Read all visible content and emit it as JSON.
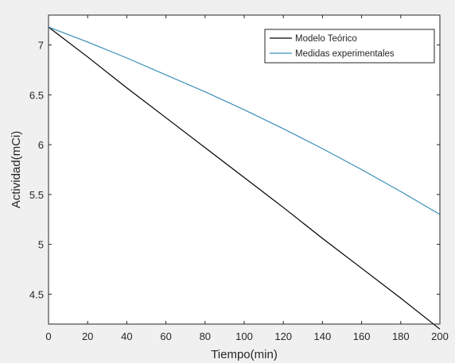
{
  "chart_data": {
    "type": "line",
    "xlabel": "Tiempo(min)",
    "ylabel": "Actividad(mCi)",
    "xlim": [
      0,
      200
    ],
    "ylim": [
      4.2,
      7.3
    ],
    "x_ticks": [
      0,
      20,
      40,
      60,
      80,
      100,
      120,
      140,
      160,
      180,
      200
    ],
    "y_ticks": [
      4.5,
      5,
      5.5,
      6,
      6.5,
      7
    ],
    "y_tick_labels": [
      "4.5",
      "5",
      "5.5",
      "6",
      "6.5",
      "7"
    ],
    "grid": false,
    "legend_position": "top-right",
    "series": [
      {
        "name": "Modelo Teórico",
        "color": "#000000",
        "x": [
          0,
          20,
          40,
          60,
          80,
          100,
          120,
          140,
          160,
          180,
          200
        ],
        "y": [
          7.18,
          6.88,
          6.57,
          6.27,
          5.97,
          5.67,
          5.37,
          5.06,
          4.76,
          4.46,
          4.15
        ]
      },
      {
        "name": "Medidas experimentales",
        "color": "#3a8fb7",
        "x": [
          0,
          20,
          40,
          60,
          80,
          100,
          120,
          140,
          160,
          180,
          200
        ],
        "y": [
          7.18,
          7.03,
          6.87,
          6.7,
          6.53,
          6.35,
          6.16,
          5.96,
          5.75,
          5.53,
          5.3
        ]
      }
    ]
  }
}
